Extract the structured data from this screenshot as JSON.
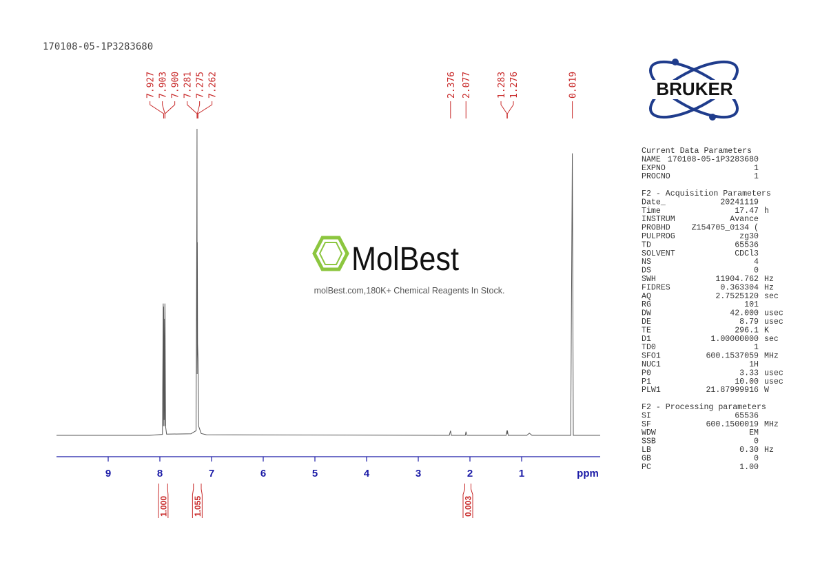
{
  "title": "170108-05-1P3283680",
  "logo": "BRUKER",
  "watermark": {
    "name": "MolBest",
    "tagline": "molBest.com,180K+ Chemical Reagents In Stock."
  },
  "chart_data": {
    "type": "nmr",
    "x_label": "ppm",
    "xlim": [
      10.0,
      -0.52
    ],
    "xticks": [
      9,
      8,
      7,
      6,
      5,
      4,
      3,
      2,
      1
    ],
    "ylim": [
      0,
      100
    ],
    "color": "#555555",
    "x": [
      10,
      8.2,
      7.95,
      7.935,
      7.93,
      7.927,
      7.92,
      7.91,
      7.905,
      7.903,
      7.9,
      7.89,
      7.87,
      7.4,
      7.3,
      7.285,
      7.281,
      7.278,
      7.275,
      7.27,
      7.262,
      7.25,
      7.2,
      7.1,
      2.4,
      2.376,
      2.36,
      2.09,
      2.077,
      2.06,
      1.3,
      1.283,
      1.28,
      1.276,
      1.26,
      0.9,
      0.85,
      0.8,
      0.05,
      0.019,
      0.0,
      -0.52
    ],
    "values": [
      0,
      0,
      0.3,
      43,
      3,
      42,
      5,
      38,
      3,
      43,
      40,
      3,
      0.4,
      0.5,
      1.5,
      70,
      100,
      20,
      63,
      30,
      25,
      3,
      0.6,
      0.2,
      0,
      1.5,
      0,
      0,
      1.2,
      0,
      0,
      1.6,
      0.5,
      1.6,
      0,
      0,
      0.7,
      0,
      0,
      92,
      0,
      0
    ],
    "peak_labels": [
      {
        "value": 7.927,
        "label": "7.927"
      },
      {
        "value": 7.903,
        "label": "7.903"
      },
      {
        "value": 7.9,
        "label": "7.900"
      },
      {
        "value": 7.281,
        "label": "7.281"
      },
      {
        "value": 7.275,
        "label": "7.275"
      },
      {
        "value": 7.262,
        "label": "7.262"
      },
      {
        "value": 2.376,
        "label": "2.376"
      },
      {
        "value": 2.077,
        "label": "2.077"
      },
      {
        "value": 1.283,
        "label": "1.283"
      },
      {
        "value": 1.276,
        "label": "1.276"
      },
      {
        "value": 0.019,
        "label": "0.019"
      }
    ],
    "integrals": {
      "ranges": [
        [
          8.02,
          7.85
        ],
        [
          7.35,
          7.2
        ],
        [
          2.1,
          1.98
        ]
      ],
      "values": [
        1.0,
        1.055,
        0.003
      ],
      "value_labels": [
        "1.000",
        "1.055",
        "0.003"
      ]
    }
  },
  "parameters": [
    {
      "title": "Current Data Parameters",
      "rows": [
        {
          "name": "NAME",
          "value": "170108-05-1P3283680"
        },
        {
          "name": "EXPNO",
          "value": "1"
        },
        {
          "name": "PROCNO",
          "value": "1"
        }
      ]
    },
    {
      "title": "F2 - Acquisition Parameters",
      "rows": [
        {
          "name": "Date_",
          "value": "20241119"
        },
        {
          "name": "Time",
          "value": "17.47",
          "unit": "h"
        },
        {
          "name": "INSTRUM",
          "value": "Avance"
        },
        {
          "name": "PROBHD",
          "value": "Z154705_0134 ("
        },
        {
          "name": "PULPROG",
          "value": "zg30"
        },
        {
          "name": "TD",
          "value": "65536"
        },
        {
          "name": "SOLVENT",
          "value": "CDCl3"
        },
        {
          "name": "NS",
          "value": "4"
        },
        {
          "name": "DS",
          "value": "0"
        },
        {
          "name": "SWH",
          "value": "11904.762",
          "unit": "Hz"
        },
        {
          "name": "FIDRES",
          "value": "0.363304",
          "unit": "Hz"
        },
        {
          "name": "AQ",
          "value": "2.7525120",
          "unit": "sec"
        },
        {
          "name": "RG",
          "value": "101"
        },
        {
          "name": "DW",
          "value": "42.000",
          "unit": "usec"
        },
        {
          "name": "DE",
          "value": "8.79",
          "unit": "usec"
        },
        {
          "name": "TE",
          "value": "296.1",
          "unit": "K"
        },
        {
          "name": "D1",
          "value": "1.00000000",
          "unit": "sec"
        },
        {
          "name": "TD0",
          "value": "1"
        },
        {
          "name": "SFO1",
          "value": "600.1537059",
          "unit": "MHz"
        },
        {
          "name": "NUC1",
          "value": "1H"
        },
        {
          "name": "P0",
          "value": "3.33",
          "unit": "usec"
        },
        {
          "name": "P1",
          "value": "10.00",
          "unit": "usec"
        },
        {
          "name": "PLW1",
          "value": "21.87999916",
          "unit": "W"
        }
      ]
    },
    {
      "title": "F2 - Processing parameters",
      "rows": [
        {
          "name": "SI",
          "value": "65536"
        },
        {
          "name": "SF",
          "value": "600.1500019",
          "unit": "MHz"
        },
        {
          "name": "WDW",
          "value": "EM"
        },
        {
          "name": "SSB",
          "value": "0"
        },
        {
          "name": "LB",
          "value": "0.30",
          "unit": "Hz"
        },
        {
          "name": "GB",
          "value": "0"
        },
        {
          "name": "PC",
          "value": "1.00"
        }
      ]
    }
  ]
}
